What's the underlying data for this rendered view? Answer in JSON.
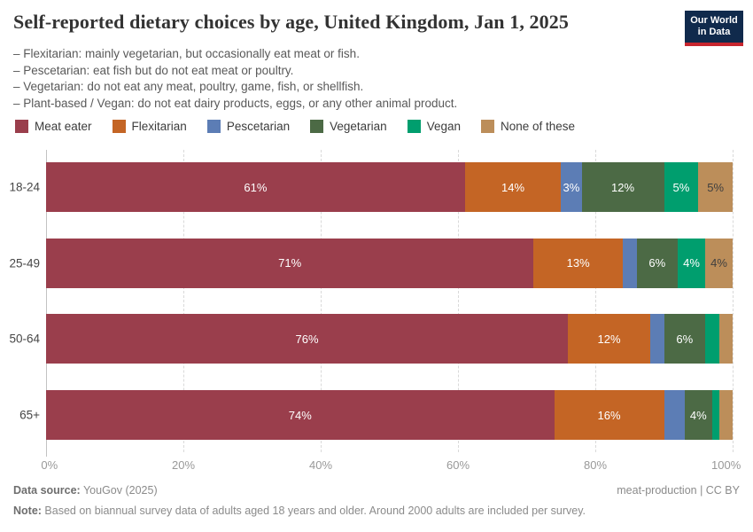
{
  "header": {
    "title": "Self-reported dietary choices by age, United Kingdom, Jan 1, 2025",
    "logo": {
      "line1": "Our World",
      "line2": "in Data"
    }
  },
  "subtitle_lines": [
    "– Flexitarian: mainly vegetarian, but occasionally eat meat or fish.",
    "– Pescetarian: eat fish but do not eat meat or poultry.",
    "– Vegetarian: do not eat any meat, poultry, game, fish, or shellfish.",
    "– Plant-based / Vegan: do not eat dairy products, eggs, or any other animal product.",
    "– Plant-based / Vegan: do not eat dairy products, eggs, or any other animal product."
  ],
  "chart_data": {
    "type": "bar",
    "variant": "horizontal-stacked",
    "categories": [
      "18-24",
      "25-49",
      "50-64",
      "65+"
    ],
    "series": [
      {
        "name": "Meat eater",
        "color": "#9A3E4C",
        "values": [
          61,
          71,
          76,
          74
        ],
        "labels": [
          "61%",
          "71%",
          "76%",
          "74%"
        ],
        "dark_label": false
      },
      {
        "name": "Flexitarian",
        "color": "#C46525",
        "values": [
          14,
          13,
          12,
          16
        ],
        "labels": [
          "14%",
          "13%",
          "12%",
          "16%"
        ],
        "dark_label": false
      },
      {
        "name": "Pescetarian",
        "color": "#5C7DB5",
        "values": [
          3,
          2,
          2,
          3
        ],
        "labels": [
          "3%",
          "",
          "",
          ""
        ],
        "dark_label": false
      },
      {
        "name": "Vegetarian",
        "color": "#4C6A45",
        "values": [
          12,
          6,
          6,
          4
        ],
        "labels": [
          "12%",
          "6%",
          "6%",
          "4%"
        ],
        "dark_label": false
      },
      {
        "name": "Vegan",
        "color": "#009E6E",
        "values": [
          5,
          4,
          2,
          1
        ],
        "labels": [
          "5%",
          "4%",
          "",
          ""
        ],
        "dark_label": false
      },
      {
        "name": "None of these",
        "color": "#BC8E5A",
        "values": [
          5,
          4,
          2,
          2
        ],
        "labels": [
          "5%",
          "4%",
          "",
          ""
        ],
        "dark_label": true
      }
    ],
    "title": "Self-reported dietary choices by age, United Kingdom, Jan 1, 2025",
    "xlabel": "",
    "ylabel": "",
    "xlim": [
      0,
      100
    ],
    "xticks": [
      {
        "value": 0,
        "label": "0%"
      },
      {
        "value": 20,
        "label": "20%"
      },
      {
        "value": 40,
        "label": "40%"
      },
      {
        "value": 60,
        "label": "60%"
      },
      {
        "value": 80,
        "label": "80%"
      },
      {
        "value": 100,
        "label": "100%"
      }
    ],
    "grid": "vertical-dashed",
    "legend_position": "top"
  },
  "footer": {
    "data_source_label": "Data source:",
    "data_source_value": " YouGov (2025)",
    "attribution": "meat-production | CC BY",
    "note_label": "Note:",
    "note_value": " Based on biannual survey data of adults aged 18 years and older. Around 2000 adults are included per survey."
  }
}
